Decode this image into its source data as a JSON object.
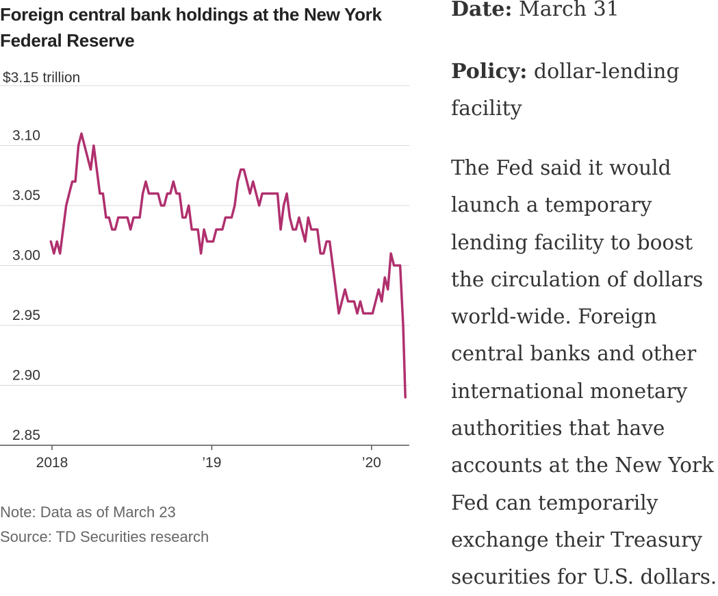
{
  "chart_data": {
    "type": "line",
    "title": "Foreign central bank holdings at the New York Federal Reserve",
    "y_top_label": "$3.15 trillion",
    "ylim": [
      2.85,
      3.15
    ],
    "y_ticks": [
      "3.10",
      "3.05",
      "3.00",
      "2.95",
      "2.90",
      "2.85"
    ],
    "x_ticks": [
      "2018",
      "’19",
      "’20"
    ],
    "grid": true,
    "series": [
      {
        "color": "#b0306e",
        "points": [
          [
            "2018-01-03",
            3.02
          ],
          [
            "2018-01-10",
            3.01
          ],
          [
            "2018-01-17",
            3.02
          ],
          [
            "2018-01-24",
            3.01
          ],
          [
            "2018-01-31",
            3.03
          ],
          [
            "2018-02-07",
            3.05
          ],
          [
            "2018-02-14",
            3.06
          ],
          [
            "2018-02-21",
            3.07
          ],
          [
            "2018-02-28",
            3.07
          ],
          [
            "2018-03-07",
            3.1
          ],
          [
            "2018-03-14",
            3.11
          ],
          [
            "2018-03-21",
            3.1
          ],
          [
            "2018-03-28",
            3.09
          ],
          [
            "2018-04-04",
            3.08
          ],
          [
            "2018-04-11",
            3.1
          ],
          [
            "2018-04-18",
            3.08
          ],
          [
            "2018-04-25",
            3.06
          ],
          [
            "2018-05-02",
            3.06
          ],
          [
            "2018-05-09",
            3.04
          ],
          [
            "2018-05-16",
            3.04
          ],
          [
            "2018-05-23",
            3.03
          ],
          [
            "2018-05-30",
            3.03
          ],
          [
            "2018-06-06",
            3.04
          ],
          [
            "2018-06-13",
            3.04
          ],
          [
            "2018-06-20",
            3.04
          ],
          [
            "2018-06-27",
            3.04
          ],
          [
            "2018-07-04",
            3.03
          ],
          [
            "2018-07-11",
            3.04
          ],
          [
            "2018-07-18",
            3.04
          ],
          [
            "2018-07-25",
            3.04
          ],
          [
            "2018-08-01",
            3.06
          ],
          [
            "2018-08-08",
            3.07
          ],
          [
            "2018-08-15",
            3.06
          ],
          [
            "2018-08-22",
            3.06
          ],
          [
            "2018-08-29",
            3.06
          ],
          [
            "2018-09-05",
            3.06
          ],
          [
            "2018-09-12",
            3.05
          ],
          [
            "2018-09-19",
            3.05
          ],
          [
            "2018-09-26",
            3.06
          ],
          [
            "2018-10-03",
            3.06
          ],
          [
            "2018-10-10",
            3.07
          ],
          [
            "2018-10-17",
            3.06
          ],
          [
            "2018-10-24",
            3.06
          ],
          [
            "2018-10-31",
            3.04
          ],
          [
            "2018-11-07",
            3.04
          ],
          [
            "2018-11-14",
            3.05
          ],
          [
            "2018-11-21",
            3.03
          ],
          [
            "2018-11-28",
            3.03
          ],
          [
            "2018-12-05",
            3.03
          ],
          [
            "2018-12-12",
            3.01
          ],
          [
            "2018-12-19",
            3.03
          ],
          [
            "2018-12-26",
            3.02
          ],
          [
            "2019-01-02",
            3.02
          ],
          [
            "2019-01-09",
            3.02
          ],
          [
            "2019-01-16",
            3.03
          ],
          [
            "2019-01-23",
            3.03
          ],
          [
            "2019-01-30",
            3.03
          ],
          [
            "2019-02-06",
            3.04
          ],
          [
            "2019-02-13",
            3.04
          ],
          [
            "2019-02-20",
            3.04
          ],
          [
            "2019-02-27",
            3.05
          ],
          [
            "2019-03-06",
            3.07
          ],
          [
            "2019-03-13",
            3.08
          ],
          [
            "2019-03-20",
            3.08
          ],
          [
            "2019-03-27",
            3.07
          ],
          [
            "2019-04-03",
            3.06
          ],
          [
            "2019-04-10",
            3.07
          ],
          [
            "2019-04-17",
            3.06
          ],
          [
            "2019-04-24",
            3.05
          ],
          [
            "2019-05-01",
            3.06
          ],
          [
            "2019-05-08",
            3.06
          ],
          [
            "2019-05-15",
            3.06
          ],
          [
            "2019-05-22",
            3.06
          ],
          [
            "2019-05-29",
            3.06
          ],
          [
            "2019-06-05",
            3.06
          ],
          [
            "2019-06-12",
            3.03
          ],
          [
            "2019-06-19",
            3.05
          ],
          [
            "2019-06-26",
            3.06
          ],
          [
            "2019-07-03",
            3.04
          ],
          [
            "2019-07-10",
            3.03
          ],
          [
            "2019-07-17",
            3.03
          ],
          [
            "2019-07-24",
            3.04
          ],
          [
            "2019-07-31",
            3.03
          ],
          [
            "2019-08-07",
            3.02
          ],
          [
            "2019-08-14",
            3.04
          ],
          [
            "2019-08-21",
            3.03
          ],
          [
            "2019-08-28",
            3.03
          ],
          [
            "2019-09-04",
            3.03
          ],
          [
            "2019-09-11",
            3.01
          ],
          [
            "2019-09-18",
            3.01
          ],
          [
            "2019-09-25",
            3.02
          ],
          [
            "2019-10-02",
            3.02
          ],
          [
            "2019-10-09",
            3.0
          ],
          [
            "2019-10-16",
            2.98
          ],
          [
            "2019-10-23",
            2.96
          ],
          [
            "2019-10-30",
            2.97
          ],
          [
            "2019-11-06",
            2.98
          ],
          [
            "2019-11-13",
            2.97
          ],
          [
            "2019-11-20",
            2.97
          ],
          [
            "2019-11-27",
            2.97
          ],
          [
            "2019-12-04",
            2.96
          ],
          [
            "2019-12-11",
            2.97
          ],
          [
            "2019-12-18",
            2.96
          ],
          [
            "2019-12-25",
            2.96
          ],
          [
            "2020-01-01",
            2.96
          ],
          [
            "2020-01-08",
            2.96
          ],
          [
            "2020-01-15",
            2.97
          ],
          [
            "2020-01-22",
            2.98
          ],
          [
            "2020-01-29",
            2.97
          ],
          [
            "2020-02-05",
            2.99
          ],
          [
            "2020-02-12",
            2.98
          ],
          [
            "2020-02-19",
            3.01
          ],
          [
            "2020-02-26",
            3.0
          ],
          [
            "2020-03-04",
            3.0
          ],
          [
            "2020-03-11",
            3.0
          ],
          [
            "2020-03-18",
            2.95
          ],
          [
            "2020-03-23",
            2.89
          ]
        ]
      }
    ]
  },
  "notes": {
    "note": "Note: Data as of March 23",
    "source": "Source: TD Securities research"
  },
  "sidebar": {
    "date_label": "Date:",
    "date_value": "March 31",
    "policy_label": "Policy:",
    "policy_value": "dollar-lending facility",
    "body": "The Fed said it would launch a temporary lending facility to boost the circulation of dollars world-wide. Foreign central banks and other international monetary authorities that have accounts at the New York Fed can temporarily exchange their Treasury securities for U.S. dollars."
  }
}
